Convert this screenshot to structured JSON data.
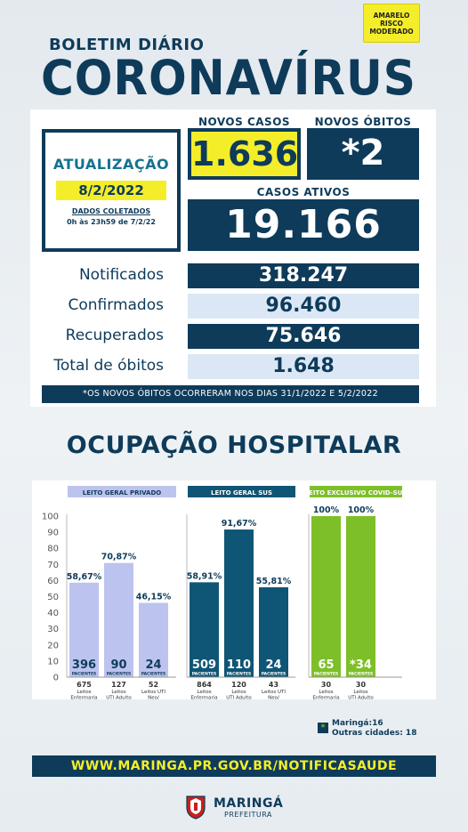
{
  "risk_badge": {
    "line1": "AMARELO",
    "line2": "RISCO",
    "line3": "MODERADO"
  },
  "header": {
    "boletim": "BOLETIM DIÁRIO",
    "title": "CORONAVÍRUS"
  },
  "update": {
    "label": "ATUALIZAÇÃO",
    "date": "8/2/2022",
    "dados": "DADOS COLETADOS",
    "hora": "0h às 23h59 de 7/2/22"
  },
  "novos_casos": {
    "label": "NOVOS CASOS",
    "value": "1.636"
  },
  "novos_obitos": {
    "label": "NOVOS ÓBITOS",
    "value": "*2"
  },
  "casos_ativos": {
    "label": "CASOS ATIVOS",
    "value": "19.166"
  },
  "stats": [
    {
      "label": "Notificados",
      "value": "318.247"
    },
    {
      "label": "Confirmados",
      "value": "96.460"
    },
    {
      "label": "Recuperados",
      "value": "75.646"
    },
    {
      "label": "Total de óbitos",
      "value": "1.648"
    }
  ],
  "note": "*OS NOVOS  ÓBITOS OCORRERAM NOS DIAS 31/1/2022 E 5/2/2022",
  "ocupacao_title": "OCUPAÇÃO HOSPITALAR",
  "colors": {
    "navy": "#0e3b5a",
    "yellow": "#f4ee2a",
    "lavender": "#bcc3ee",
    "teal": "#0f5576",
    "green": "#7dbf28"
  },
  "chart_data": {
    "type": "bar",
    "ylim": [
      0,
      100
    ],
    "yticks": [
      "0",
      "10",
      "20",
      "30",
      "40",
      "50",
      "60",
      "70",
      "80",
      "90",
      "100"
    ],
    "pacientes_label": "PACIENTES",
    "groups": [
      {
        "name": "LEITO GERAL PRIVADO",
        "color": "#bcc3ee",
        "header_color": "#bcc3ee",
        "header_text_color": "#0e3b5a",
        "bars": [
          {
            "percent": 58.67,
            "percent_label": "58,67%",
            "patients": "396",
            "beds": "675",
            "bed_type": [
              "Leitos",
              "Enfermaria"
            ]
          },
          {
            "percent": 70.87,
            "percent_label": "70,87%",
            "patients": "90",
            "beds": "127",
            "bed_type": [
              "Leitos",
              "UTI Adulto"
            ]
          },
          {
            "percent": 46.15,
            "percent_label": "46,15%",
            "patients": "24",
            "beds": "52",
            "bed_type": [
              "Leitos UTI",
              "Neo/",
              "Pediatria"
            ]
          }
        ]
      },
      {
        "name": "LEITO GERAL SUS",
        "color": "#0f5576",
        "header_color": "#0f5576",
        "header_text_color": "#ffffff",
        "bars": [
          {
            "percent": 58.91,
            "percent_label": "58,91%",
            "patients": "509",
            "beds": "864",
            "bed_type": [
              "Leitos",
              "Enfermaria"
            ]
          },
          {
            "percent": 91.67,
            "percent_label": "91,67%",
            "patients": "110",
            "beds": "120",
            "bed_type": [
              "Leitos",
              "UTI Adulto"
            ]
          },
          {
            "percent": 55.81,
            "percent_label": "55,81%",
            "patients": "24",
            "beds": "43",
            "bed_type": [
              "Leitos UTI",
              "Neo/",
              "Pediatria"
            ]
          }
        ]
      },
      {
        "name": "LEITO EXCLUSIVO COVID-SUS",
        "color": "#7dbf28",
        "header_color": "#7dbf28",
        "header_text_color": "#ffffff",
        "bars": [
          {
            "percent": 100,
            "percent_label": "100%",
            "patients": "65",
            "beds": "30",
            "bed_type": [
              "Leitos",
              "Enfermaria"
            ]
          },
          {
            "percent": 100,
            "percent_label": "100%",
            "patients": "*34",
            "beds": "30",
            "bed_type": [
              "Leitos",
              "UTI Adulto"
            ]
          }
        ]
      }
    ]
  },
  "legend": {
    "symbol": "*",
    "line1": "Maringá:16",
    "line2": "Outras cidades: 18"
  },
  "site": "WWW.MARINGA.PR.GOV.BR/NOTIFICASAUDE",
  "logo": {
    "name": "MARINGÁ",
    "sub": "PREFEITURA"
  }
}
